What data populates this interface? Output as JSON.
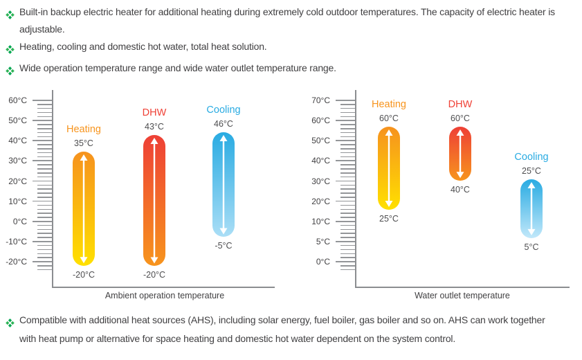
{
  "page": {
    "background": "#ffffff",
    "text_color": "#414042"
  },
  "icons": {
    "bullet": "four-diamond-clover-icon",
    "bullet_color": "#00A650",
    "range_arrow": "double-headed-arrow-icon",
    "range_arrow_color": "#ffffff"
  },
  "features_top": [
    "Built-in backup electric heater for additional heating during extremely cold outdoor temperatures. The capacity of electric heater is adjustable.",
    "Heating, cooling and domestic hot water, total heat solution.",
    "Wide operation temperature range and wide water outlet temperature range."
  ],
  "features_bottom": [
    "Compatible with additional heat sources (AHS), including solar energy, fuel boiler, gas boiler and so on. AHS can work together with heat pump or alternative for space heating and domestic hot water dependent on the system control."
  ],
  "chart_data": [
    {
      "type": "bar",
      "subtype": "vertical-range-capsule",
      "title": "",
      "xlabel": "Ambient operation temperature",
      "ylabel": "",
      "ylim": [
        -20,
        60
      ],
      "grid": false,
      "yticks_labels": [
        "60°C",
        "50°C",
        "40°C",
        "30°C",
        "20°C",
        "10°C",
        "0°C",
        "-10°C",
        "-20°C"
      ],
      "yticks_values": [
        60,
        50,
        40,
        30,
        20,
        10,
        0,
        -10,
        -20
      ],
      "series": [
        {
          "name": "Heating",
          "max": 35,
          "min": -20,
          "max_label": "35°C",
          "min_label": "-20°C",
          "name_color": "#F7941D",
          "color_top": "#F6921E",
          "color_bottom": "#FFE000"
        },
        {
          "name": "DHW",
          "max": 43,
          "min": -20,
          "max_label": "43°C",
          "min_label": "-20°C",
          "name_color": "#EF4136",
          "color_top": "#EE4036",
          "color_bottom": "#F7941D"
        },
        {
          "name": "Cooling",
          "max": 46,
          "min": -5,
          "max_label": "46°C",
          "min_label": "-5°C",
          "name_color": "#29ABE2",
          "color_top": "#29ABE2",
          "color_bottom": "#AADEF6"
        }
      ]
    },
    {
      "type": "bar",
      "subtype": "vertical-range-capsule",
      "title": "",
      "xlabel": "Water outlet temperature",
      "ylabel": "",
      "ylim": [
        0,
        70
      ],
      "grid": false,
      "yticks_labels": [
        "70°C",
        "60°C",
        "50°C",
        "40°C",
        "30°C",
        "20°C",
        "10°C",
        "5°C",
        "0°C"
      ],
      "yticks_values": [
        70,
        60,
        50,
        40,
        30,
        20,
        10,
        5,
        0
      ],
      "series": [
        {
          "name": "Heating",
          "max": 60,
          "min": 25,
          "max_label": "60°C",
          "min_label": "25°C",
          "name_color": "#F7941D",
          "color_top": "#F6921E",
          "color_bottom": "#FFE000"
        },
        {
          "name": "DHW",
          "max": 60,
          "min": 40,
          "max_label": "60°C",
          "min_label": "40°C",
          "name_color": "#EF4136",
          "color_top": "#EE4036",
          "color_bottom": "#F7941D"
        },
        {
          "name": "Cooling",
          "max": 25,
          "min": 5,
          "max_label": "25°C",
          "min_label": "5°C",
          "name_color": "#29ABE2",
          "color_top": "#29ABE2",
          "color_bottom": "#C2E8FA"
        }
      ]
    }
  ]
}
